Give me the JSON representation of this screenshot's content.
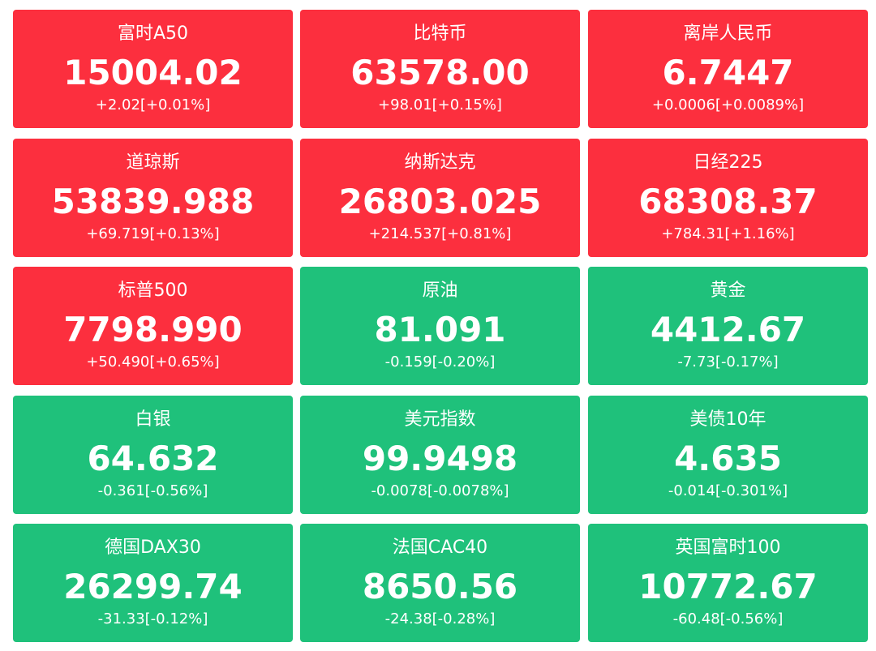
{
  "tiles": [
    {
      "name": "富时A50",
      "price": "15004.02",
      "change": "+2.02[+0.01%]",
      "color": "#fc2f3e"
    },
    {
      "name": "比特币",
      "price": "63578.00",
      "change": "+98.01[+0.15%]",
      "color": "#fc2f3e"
    },
    {
      "name": "离岸人民币",
      "price": "6.7447",
      "change": "+0.0006[+0.0089%]",
      "color": "#fc2f3e"
    },
    {
      "name": "道琼斯",
      "price": "53839.988",
      "change": "+69.719[+0.13%]",
      "color": "#fc2f3e"
    },
    {
      "name": "纳斯达克",
      "price": "26803.025",
      "change": "+214.537[+0.81%]",
      "color": "#fc2f3e"
    },
    {
      "name": "日经225",
      "price": "68308.37",
      "change": "+784.31[+1.16%]",
      "color": "#fc2f3e"
    },
    {
      "name": "标普500",
      "price": "7798.990",
      "change": "+50.490[+0.65%]",
      "color": "#fc2f3e"
    },
    {
      "name": "原油",
      "price": "81.091",
      "change": "-0.159[-0.20%]",
      "color": "#1fc17b"
    },
    {
      "name": "黄金",
      "price": "4412.67",
      "change": "-7.73[-0.17%]",
      "color": "#1fc17b"
    },
    {
      "name": "白银",
      "price": "64.632",
      "change": "-0.361[-0.56%]",
      "color": "#1fc17b"
    },
    {
      "name": "美元指数",
      "price": "99.9498",
      "change": "-0.0078[-0.0078%]",
      "color": "#1fc17b"
    },
    {
      "name": "美债10年",
      "price": "4.635",
      "change": "-0.014[-0.301%]",
      "color": "#1fc17b"
    },
    {
      "name": "德国DAX30",
      "price": "26299.74",
      "change": "-31.33[-0.12%]",
      "color": "#1fc17b"
    },
    {
      "name": "法国CAC40",
      "price": "8650.56",
      "change": "-24.38[-0.28%]",
      "color": "#1fc17b"
    },
    {
      "name": "英国富时100",
      "price": "10772.67",
      "change": "-60.48[-0.56%]",
      "color": "#1fc17b"
    }
  ]
}
